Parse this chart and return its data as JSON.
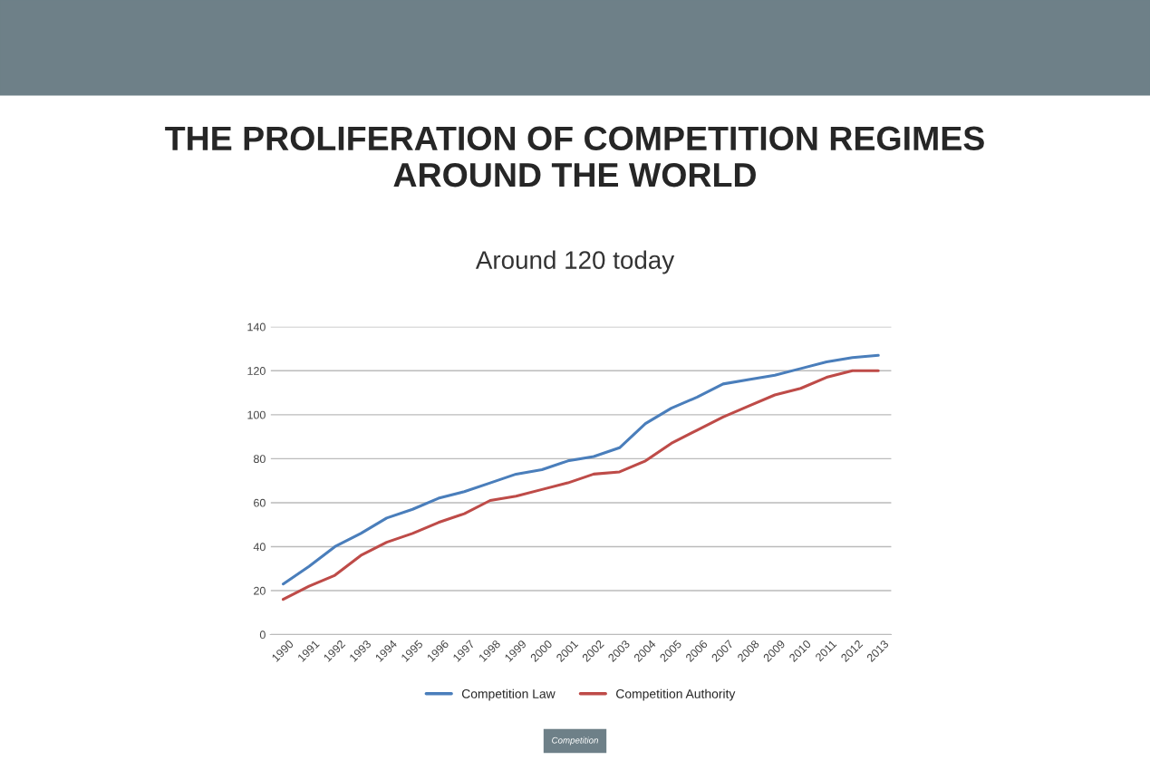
{
  "chart_data": {
    "type": "line",
    "title": "THE PROLIFERATION OF COMPETITION REGIMES\nAROUND THE WORLD",
    "subtitle": "Around 120 today",
    "categories": [
      "1990",
      "1991",
      "1992",
      "1993",
      "1994",
      "1995",
      "1996",
      "1997",
      "1998",
      "1999",
      "2000",
      "2001",
      "2002",
      "2003",
      "2004",
      "2005",
      "2006",
      "2007",
      "2008",
      "2009",
      "2010",
      "2011",
      "2012",
      "2013"
    ],
    "series": [
      {
        "name": "Competition Law",
        "color": "#4a7ebb",
        "values": [
          23,
          31,
          40,
          46,
          53,
          57,
          62,
          65,
          69,
          73,
          75,
          79,
          81,
          85,
          96,
          103,
          108,
          114,
          116,
          118,
          121,
          124,
          126,
          127
        ]
      },
      {
        "name": "Competition Authority",
        "color": "#be4b48",
        "values": [
          16,
          22,
          27,
          36,
          42,
          46,
          51,
          55,
          61,
          63,
          66,
          69,
          73,
          74,
          79,
          87,
          93,
          99,
          104,
          109,
          112,
          117,
          120,
          120
        ]
      }
    ],
    "ylim": [
      0,
      140
    ],
    "yticks": [
      0,
      20,
      40,
      60,
      80,
      100,
      120,
      140
    ],
    "grid": "y",
    "legend": "bottom",
    "marker": "none",
    "line_style": "solid",
    "annotations": [
      "Competition"
    ]
  }
}
